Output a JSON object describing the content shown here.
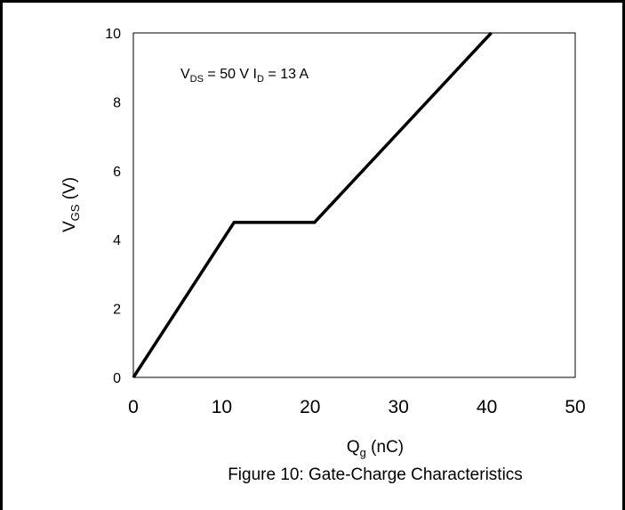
{
  "chart_data": {
    "type": "line",
    "title": "",
    "xlabel": "Q",
    "xlabel_sub": "g",
    "xlabel_unit": " (nC)",
    "ylabel": "V",
    "ylabel_sub": "GS",
    "ylabel_unit": " (V)",
    "xlim": [
      0,
      50
    ],
    "ylim": [
      0,
      10
    ],
    "xticks": [
      0,
      10,
      20,
      30,
      40,
      50
    ],
    "yticks": [
      0,
      2,
      4,
      6,
      8,
      10
    ],
    "grid": false,
    "series": [
      {
        "x": [
          0,
          11.4,
          20.5,
          40.5
        ],
        "y": [
          0,
          4.5,
          4.5,
          10
        ]
      }
    ],
    "annotation": {
      "vds_symbol": "V",
      "vds_sub": "DS",
      "vds_value": " = 50 V ",
      "id_symbol": "I",
      "id_sub": "D",
      "id_value": " = 13 A"
    },
    "caption": "Figure 10: Gate-Charge Characteristics"
  }
}
